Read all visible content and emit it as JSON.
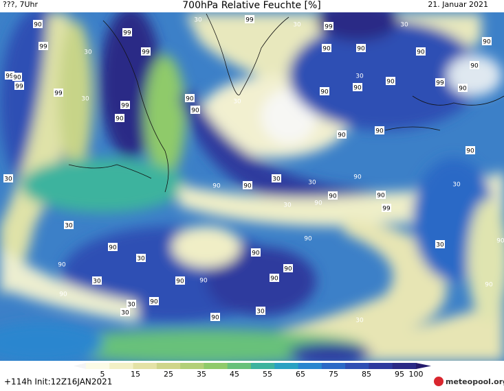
{
  "header": {
    "left": "???, 7Uhr",
    "title": "700hPa Relative Feuchte [%]",
    "date": "21. Januar 2021"
  },
  "map": {
    "labels": [
      "90",
      "99",
      "30",
      "99",
      "99",
      "30",
      "99",
      "30",
      "99",
      "90",
      "90",
      "30",
      "90",
      "90",
      "99",
      "90",
      "99",
      "99",
      "30",
      "99",
      "90",
      "90",
      "90",
      "30",
      "30",
      "90",
      "90",
      "99",
      "90",
      "90",
      "90",
      "90",
      "90",
      "90",
      "30",
      "90",
      "90",
      "30",
      "30",
      "90",
      "30",
      "30",
      "90",
      "90",
      "90",
      "99",
      "30",
      "90",
      "90",
      "90",
      "30",
      "30",
      "90",
      "90",
      "30",
      "90",
      "90",
      "90",
      "90",
      "90",
      "90",
      "30",
      "30",
      "90",
      "90",
      "30",
      "30"
    ]
  },
  "colorbar": {
    "ticks": [
      5,
      15,
      25,
      35,
      45,
      55,
      65,
      75,
      85,
      95,
      100
    ],
    "colors": [
      "#f4f4f4",
      "#fbfbe6",
      "#f2f0c6",
      "#e4e2a6",
      "#cfd58a",
      "#b2cf78",
      "#8fca6a",
      "#68c17a",
      "#3db39e",
      "#2aa1c2",
      "#2a86cf",
      "#2c69c6",
      "#2f4fb4",
      "#2e3a9e",
      "#2b2a86",
      "#241a6c"
    ]
  },
  "footer": {
    "run": "+114h Init:12Z16JAN2021",
    "logo": "meteopool.org"
  }
}
